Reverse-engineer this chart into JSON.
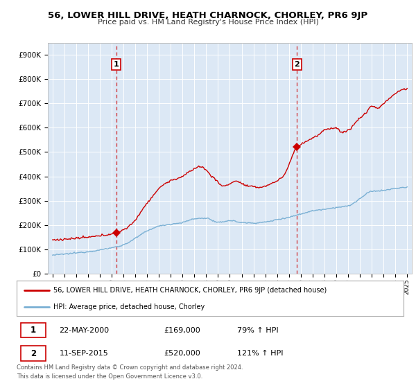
{
  "title": "56, LOWER HILL DRIVE, HEATH CHARNOCK, CHORLEY, PR6 9JP",
  "subtitle": "Price paid vs. HM Land Registry's House Price Index (HPI)",
  "legend_line1": "56, LOWER HILL DRIVE, HEATH CHARNOCK, CHORLEY, PR6 9JP (detached house)",
  "legend_line2": "HPI: Average price, detached house, Chorley",
  "footer1": "Contains HM Land Registry data © Crown copyright and database right 2024.",
  "footer2": "This data is licensed under the Open Government Licence v3.0.",
  "marker1_label": "1",
  "marker1_date": "22-MAY-2000",
  "marker1_price": "£169,000",
  "marker1_hpi": "79% ↑ HPI",
  "marker1_year": 2000.38,
  "marker1_value": 169000,
  "marker2_label": "2",
  "marker2_date": "11-SEP-2015",
  "marker2_price": "£520,000",
  "marker2_hpi": "121% ↑ HPI",
  "marker2_year": 2015.69,
  "marker2_value": 520000,
  "property_color": "#cc0000",
  "hpi_color": "#7ab0d4",
  "background_color": "#dce8f5",
  "ylim_max": 950000,
  "xlim_start": 1994.6,
  "xlim_end": 2025.4,
  "ylabel_ticks": [
    0,
    100000,
    200000,
    300000,
    400000,
    500000,
    600000,
    700000,
    800000,
    900000
  ],
  "ylabel_labels": [
    "£0",
    "£100K",
    "£200K",
    "£300K",
    "£400K",
    "£500K",
    "£600K",
    "£700K",
    "£800K",
    "£900K"
  ]
}
